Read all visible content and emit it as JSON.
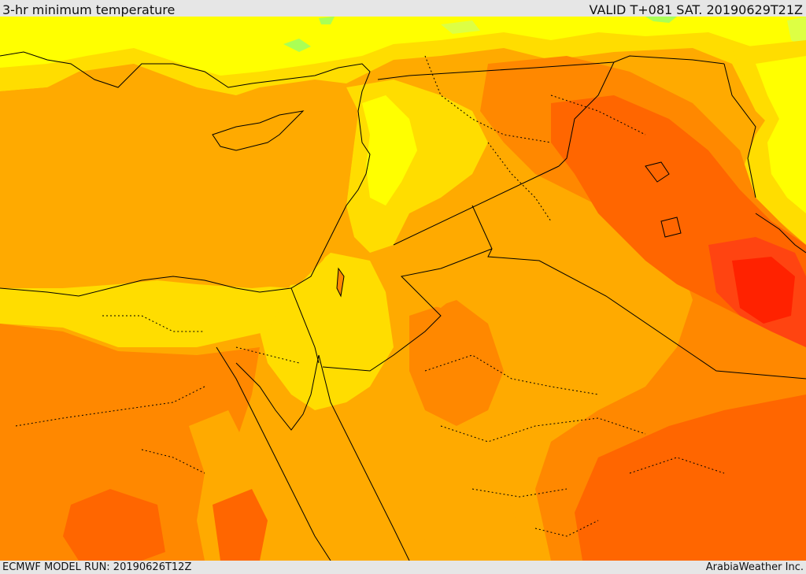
{
  "header": {
    "title": "3-hr minimum temperature",
    "valid_time": "VALID T+081 SAT. 20190629T21Z"
  },
  "footer": {
    "model_run": "ECMWF MODEL RUN: 20190626T12Z",
    "credit": "ArabiaWeather Inc."
  },
  "map": {
    "field": "3-hr minimum temperature",
    "colors": {
      "light_green": "#aaff55",
      "yellow_green": "#ddff44",
      "yellow": "#ffff00",
      "light_orange_yellow": "#ffdd00",
      "orange_light": "#ffaa00",
      "orange": "#ff8800",
      "dark_orange": "#ff6600",
      "red_orange": "#ff4411",
      "red": "#ff2200"
    },
    "boundary_color": "#000000"
  }
}
